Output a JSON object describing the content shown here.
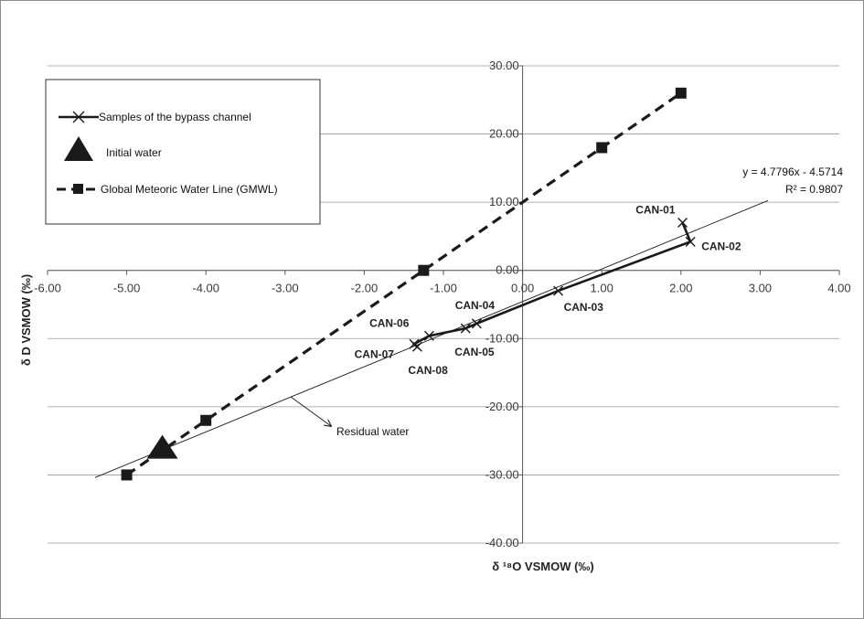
{
  "chart_data": {
    "type": "scatter",
    "xlabel": "δ ¹⁸O VSMOW (‰)",
    "ylabel": "δ D VSMOW (‰)",
    "xlim": [
      -6,
      4
    ],
    "ylim": [
      -40,
      30
    ],
    "x_ticks": [
      "-6.00",
      "-5.00",
      "-4.00",
      "-3.00",
      "-2.00",
      "-1.00",
      "0.00",
      "1.00",
      "2.00",
      "3.00",
      "4.00"
    ],
    "y_ticks": [
      "30.00",
      "20.00",
      "10.00",
      "0.00",
      "-10.00",
      "-20.00",
      "-30.00",
      "-40.00"
    ],
    "grid": "horizontal",
    "legend_position": "top-left",
    "series": [
      {
        "name": "Samples of the bypass channel",
        "marker": "x",
        "line": "solid",
        "color": "#1a1a1a",
        "points": [
          {
            "label": "CAN-01",
            "x": 2.02,
            "y": 7.0
          },
          {
            "label": "CAN-02",
            "x": 2.12,
            "y": 4.2
          },
          {
            "label": "CAN-03",
            "x": 0.45,
            "y": -3.0
          },
          {
            "label": "CAN-04",
            "x": -0.58,
            "y": -7.8
          },
          {
            "label": "CAN-05",
            "x": -0.72,
            "y": -8.5
          },
          {
            "label": "CAN-06",
            "x": -1.18,
            "y": -9.6
          },
          {
            "label": "CAN-07",
            "x": -1.37,
            "y": -10.8
          },
          {
            "label": "CAN-08",
            "x": -1.33,
            "y": -11.2
          }
        ]
      },
      {
        "name": "Initial water",
        "marker": "triangle",
        "color": "#1a1a1a",
        "points": [
          {
            "x": -4.55,
            "y": -26.0
          }
        ]
      },
      {
        "name": "Global Meteoric Water Line (GMWL)",
        "marker": "square",
        "line": "dashed",
        "color": "#1a1a1a",
        "points": [
          {
            "x": -5.0,
            "y": -30.0
          },
          {
            "x": -4.0,
            "y": -22.0
          },
          {
            "x": -1.25,
            "y": 0.0
          },
          {
            "x": 1.0,
            "y": 18.0
          },
          {
            "x": 2.0,
            "y": 26.0
          }
        ]
      }
    ],
    "trendline": {
      "slope": 4.7796,
      "intercept": -4.5714,
      "x_range": [
        -5.4,
        3.1
      ],
      "equation": "y = 4.7796x - 4.5714",
      "r2": "R² = 0.9807",
      "annotation": "Residual water"
    }
  }
}
